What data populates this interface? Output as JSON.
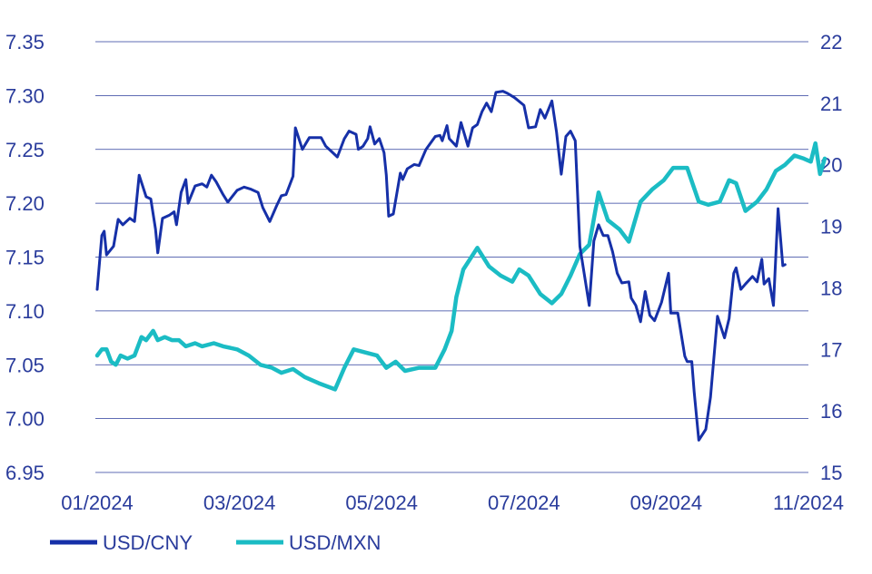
{
  "colors": {
    "cny": "#1630a8",
    "mxn": "#1bbcc4",
    "axis_text": "#2a3c9c",
    "grid": "#2a3c9c"
  },
  "chart_data": {
    "type": "line",
    "grid": "horizontal",
    "legend_position": "bottom-left",
    "x_ticks": [
      "01/2024",
      "03/2024",
      "05/2024",
      "07/2024",
      "09/2024",
      "11/2024"
    ],
    "x_range": [
      "2024-01-01",
      "2024-11-01"
    ],
    "y_left": {
      "ticks": [
        "7.35",
        "7.30",
        "7.25",
        "7.20",
        "7.15",
        "7.10",
        "7.05",
        "7.00",
        "6.95"
      ],
      "range": [
        6.95,
        7.35
      ]
    },
    "y_right": {
      "ticks": [
        "22",
        "21",
        "20",
        "19",
        "18",
        "17",
        "16",
        "15"
      ],
      "range": [
        15,
        22
      ]
    },
    "series": [
      {
        "name": "USD/CNY",
        "axis": "left",
        "points": [
          [
            "2024-01-01",
            7.12
          ],
          [
            "2024-01-03",
            7.17
          ],
          [
            "2024-01-04",
            7.174
          ],
          [
            "2024-01-05",
            7.152
          ],
          [
            "2024-01-08",
            7.16
          ],
          [
            "2024-01-10",
            7.185
          ],
          [
            "2024-01-12",
            7.18
          ],
          [
            "2024-01-15",
            7.186
          ],
          [
            "2024-01-17",
            7.183
          ],
          [
            "2024-01-19",
            7.226
          ],
          [
            "2024-01-22",
            7.206
          ],
          [
            "2024-01-24",
            7.204
          ],
          [
            "2024-01-26",
            7.176
          ],
          [
            "2024-01-27",
            7.154
          ],
          [
            "2024-01-29",
            7.186
          ],
          [
            "2024-02-01",
            7.189
          ],
          [
            "2024-02-03",
            7.192
          ],
          [
            "2024-02-04",
            7.18
          ],
          [
            "2024-02-06",
            7.21
          ],
          [
            "2024-02-08",
            7.222
          ],
          [
            "2024-02-09",
            7.2
          ],
          [
            "2024-02-12",
            7.216
          ],
          [
            "2024-02-15",
            7.218
          ],
          [
            "2024-02-17",
            7.215
          ],
          [
            "2024-02-19",
            7.226
          ],
          [
            "2024-02-21",
            7.22
          ],
          [
            "2024-02-24",
            7.208
          ],
          [
            "2024-02-26",
            7.201
          ],
          [
            "2024-03-01",
            7.212
          ],
          [
            "2024-03-04",
            7.215
          ],
          [
            "2024-03-07",
            7.213
          ],
          [
            "2024-03-10",
            7.21
          ],
          [
            "2024-03-12",
            7.196
          ],
          [
            "2024-03-15",
            7.183
          ],
          [
            "2024-03-18",
            7.198
          ],
          [
            "2024-03-20",
            7.207
          ],
          [
            "2024-03-22",
            7.208
          ],
          [
            "2024-03-25",
            7.225
          ],
          [
            "2024-03-26",
            7.27
          ],
          [
            "2024-03-29",
            7.25
          ],
          [
            "2024-04-01",
            7.261
          ],
          [
            "2024-04-06",
            7.261
          ],
          [
            "2024-04-08",
            7.253
          ],
          [
            "2024-04-10",
            7.249
          ],
          [
            "2024-04-13",
            7.243
          ],
          [
            "2024-04-16",
            7.26
          ],
          [
            "2024-04-18",
            7.267
          ],
          [
            "2024-04-21",
            7.264
          ],
          [
            "2024-04-22",
            7.25
          ],
          [
            "2024-04-24",
            7.253
          ],
          [
            "2024-04-26",
            7.26
          ],
          [
            "2024-04-27",
            7.271
          ],
          [
            "2024-04-29",
            7.255
          ],
          [
            "2024-05-01",
            7.26
          ],
          [
            "2024-05-03",
            7.247
          ],
          [
            "2024-05-04",
            7.226
          ],
          [
            "2024-05-05",
            7.188
          ],
          [
            "2024-05-07",
            7.19
          ],
          [
            "2024-05-10",
            7.228
          ],
          [
            "2024-05-11",
            7.222
          ],
          [
            "2024-05-13",
            7.232
          ],
          [
            "2024-05-16",
            7.236
          ],
          [
            "2024-05-18",
            7.235
          ],
          [
            "2024-05-21",
            7.25
          ],
          [
            "2024-05-25",
            7.262
          ],
          [
            "2024-05-27",
            7.263
          ],
          [
            "2024-05-28",
            7.258
          ],
          [
            "2024-05-30",
            7.272
          ],
          [
            "2024-05-31",
            7.26
          ],
          [
            "2024-06-03",
            7.253
          ],
          [
            "2024-06-05",
            7.275
          ],
          [
            "2024-06-08",
            7.253
          ],
          [
            "2024-06-10",
            7.27
          ],
          [
            "2024-06-12",
            7.273
          ],
          [
            "2024-06-14",
            7.285
          ],
          [
            "2024-06-16",
            7.293
          ],
          [
            "2024-06-18",
            7.285
          ],
          [
            "2024-06-20",
            7.303
          ],
          [
            "2024-06-23",
            7.304
          ],
          [
            "2024-06-25",
            7.302
          ],
          [
            "2024-06-28",
            7.298
          ],
          [
            "2024-07-02",
            7.291
          ],
          [
            "2024-07-04",
            7.27
          ],
          [
            "2024-07-07",
            7.271
          ],
          [
            "2024-07-09",
            7.287
          ],
          [
            "2024-07-11",
            7.279
          ],
          [
            "2024-07-14",
            7.295
          ],
          [
            "2024-07-16",
            7.266
          ],
          [
            "2024-07-18",
            7.227
          ],
          [
            "2024-07-20",
            7.262
          ],
          [
            "2024-07-22",
            7.267
          ],
          [
            "2024-07-24",
            7.258
          ],
          [
            "2024-07-25",
            7.21
          ],
          [
            "2024-07-26",
            7.16
          ],
          [
            "2024-07-30",
            7.105
          ],
          [
            "2024-08-01",
            7.165
          ],
          [
            "2024-08-03",
            7.18
          ],
          [
            "2024-08-05",
            7.17
          ],
          [
            "2024-08-07",
            7.17
          ],
          [
            "2024-08-09",
            7.155
          ],
          [
            "2024-08-11",
            7.135
          ],
          [
            "2024-08-13",
            7.126
          ],
          [
            "2024-08-16",
            7.127
          ],
          [
            "2024-08-17",
            7.112
          ],
          [
            "2024-08-19",
            7.105
          ],
          [
            "2024-08-21",
            7.09
          ],
          [
            "2024-08-23",
            7.118
          ],
          [
            "2024-08-25",
            7.096
          ],
          [
            "2024-08-27",
            7.091
          ],
          [
            "2024-08-30",
            7.108
          ],
          [
            "2024-09-02",
            7.135
          ],
          [
            "2024-09-03",
            7.098
          ],
          [
            "2024-09-06",
            7.098
          ],
          [
            "2024-09-09",
            7.058
          ],
          [
            "2024-09-10",
            7.053
          ],
          [
            "2024-09-12",
            7.053
          ],
          [
            "2024-09-13",
            7.025
          ],
          [
            "2024-09-15",
            6.98
          ],
          [
            "2024-09-18",
            6.99
          ],
          [
            "2024-09-20",
            7.02
          ],
          [
            "2024-09-23",
            7.095
          ],
          [
            "2024-09-26",
            7.075
          ],
          [
            "2024-09-28",
            7.093
          ],
          [
            "2024-09-30",
            7.135
          ],
          [
            "2024-10-01",
            7.14
          ],
          [
            "2024-10-03",
            7.12
          ],
          [
            "2024-10-05",
            7.125
          ],
          [
            "2024-10-08",
            7.132
          ],
          [
            "2024-10-10",
            7.127
          ],
          [
            "2024-10-12",
            7.148
          ],
          [
            "2024-10-13",
            7.125
          ],
          [
            "2024-10-15",
            7.13
          ],
          [
            "2024-10-17",
            7.105
          ],
          [
            "2024-10-19",
            7.195
          ],
          [
            "2024-10-21",
            7.142
          ],
          [
            "2024-10-22",
            7.143
          ]
        ]
      },
      {
        "name": "USD/MXN",
        "axis": "right",
        "points": [
          [
            "2024-01-01",
            16.9
          ],
          [
            "2024-01-03",
            17.0
          ],
          [
            "2024-01-05",
            17.0
          ],
          [
            "2024-01-07",
            16.8
          ],
          [
            "2024-01-09",
            16.75
          ],
          [
            "2024-01-11",
            16.9
          ],
          [
            "2024-01-14",
            16.85
          ],
          [
            "2024-01-17",
            16.9
          ],
          [
            "2024-01-20",
            17.2
          ],
          [
            "2024-01-22",
            17.15
          ],
          [
            "2024-01-25",
            17.3
          ],
          [
            "2024-01-27",
            17.15
          ],
          [
            "2024-01-30",
            17.2
          ],
          [
            "2024-02-02",
            17.15
          ],
          [
            "2024-02-05",
            17.15
          ],
          [
            "2024-02-08",
            17.05
          ],
          [
            "2024-02-12",
            17.1
          ],
          [
            "2024-02-15",
            17.05
          ],
          [
            "2024-02-20",
            17.1
          ],
          [
            "2024-02-24",
            17.05
          ],
          [
            "2024-03-01",
            17.0
          ],
          [
            "2024-03-06",
            16.9
          ],
          [
            "2024-03-11",
            16.75
          ],
          [
            "2024-03-16",
            16.7
          ],
          [
            "2024-03-20",
            16.62
          ],
          [
            "2024-03-25",
            16.68
          ],
          [
            "2024-03-30",
            16.55
          ],
          [
            "2024-04-05",
            16.45
          ],
          [
            "2024-04-12",
            16.35
          ],
          [
            "2024-04-16",
            16.7
          ],
          [
            "2024-04-20",
            17.0
          ],
          [
            "2024-04-25",
            16.95
          ],
          [
            "2024-04-30",
            16.9
          ],
          [
            "2024-05-04",
            16.7
          ],
          [
            "2024-05-08",
            16.8
          ],
          [
            "2024-05-12",
            16.65
          ],
          [
            "2024-05-18",
            16.7
          ],
          [
            "2024-05-25",
            16.7
          ],
          [
            "2024-05-29",
            17.0
          ],
          [
            "2024-06-01",
            17.3
          ],
          [
            "2024-06-03",
            17.85
          ],
          [
            "2024-06-06",
            18.3
          ],
          [
            "2024-06-12",
            18.65
          ],
          [
            "2024-06-17",
            18.35
          ],
          [
            "2024-06-22",
            18.2
          ],
          [
            "2024-06-27",
            18.1
          ],
          [
            "2024-06-30",
            18.3
          ],
          [
            "2024-07-04",
            18.2
          ],
          [
            "2024-07-09",
            17.9
          ],
          [
            "2024-07-14",
            17.75
          ],
          [
            "2024-07-18",
            17.9
          ],
          [
            "2024-07-22",
            18.2
          ],
          [
            "2024-07-26",
            18.55
          ],
          [
            "2024-07-30",
            18.7
          ],
          [
            "2024-08-03",
            19.55
          ],
          [
            "2024-08-07",
            19.1
          ],
          [
            "2024-08-12",
            18.95
          ],
          [
            "2024-08-16",
            18.75
          ],
          [
            "2024-08-21",
            19.4
          ],
          [
            "2024-08-26",
            19.6
          ],
          [
            "2024-08-31",
            19.75
          ],
          [
            "2024-09-04",
            19.95
          ],
          [
            "2024-09-10",
            19.95
          ],
          [
            "2024-09-15",
            19.4
          ],
          [
            "2024-09-19",
            19.35
          ],
          [
            "2024-09-24",
            19.4
          ],
          [
            "2024-09-28",
            19.75
          ],
          [
            "2024-10-01",
            19.7
          ],
          [
            "2024-10-05",
            19.25
          ],
          [
            "2024-10-10",
            19.4
          ],
          [
            "2024-10-14",
            19.6
          ],
          [
            "2024-10-18",
            19.9
          ],
          [
            "2024-10-22",
            20.0
          ],
          [
            "2024-10-26",
            20.15
          ],
          [
            "2024-10-30",
            20.1
          ],
          [
            "2024-11-02",
            20.05
          ],
          [
            "2024-11-04",
            20.35
          ],
          [
            "2024-11-06",
            19.85
          ],
          [
            "2024-11-08",
            20.1
          ]
        ]
      }
    ]
  }
}
